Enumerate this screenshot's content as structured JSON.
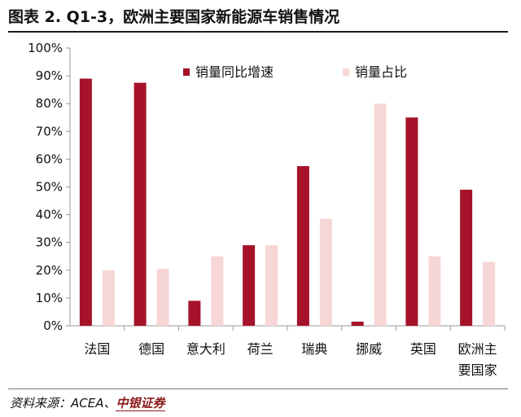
{
  "title": "图表 2. Q1-3，欧洲主要国家新能源车销售情况",
  "source": {
    "prefix": "资料来源：ACEA、",
    "org": "中银证券"
  },
  "colors": {
    "growth": "#a5122a",
    "share": "#f6d6d6",
    "axis": "#999999"
  },
  "chart_data": {
    "type": "bar",
    "categories": [
      [
        "法国"
      ],
      [
        "德国"
      ],
      [
        "意大利"
      ],
      [
        "荷兰"
      ],
      [
        "瑞典"
      ],
      [
        "挪威"
      ],
      [
        "英国"
      ],
      [
        "欧洲主",
        "要国家"
      ]
    ],
    "series": [
      {
        "name": "销量同比增速",
        "color_key": "growth",
        "values": [
          0.89,
          0.875,
          0.09,
          0.29,
          0.575,
          0.015,
          0.75,
          0.49
        ]
      },
      {
        "name": "销量占比",
        "color_key": "share",
        "values": [
          0.2,
          0.205,
          0.25,
          0.29,
          0.385,
          0.8,
          0.25,
          0.23
        ]
      }
    ],
    "ylim": [
      0,
      1
    ],
    "yticks": [
      "0%",
      "10%",
      "20%",
      "30%",
      "40%",
      "50%",
      "60%",
      "70%",
      "80%",
      "90%",
      "100%"
    ],
    "legend_position": "top-right",
    "grid": false
  }
}
